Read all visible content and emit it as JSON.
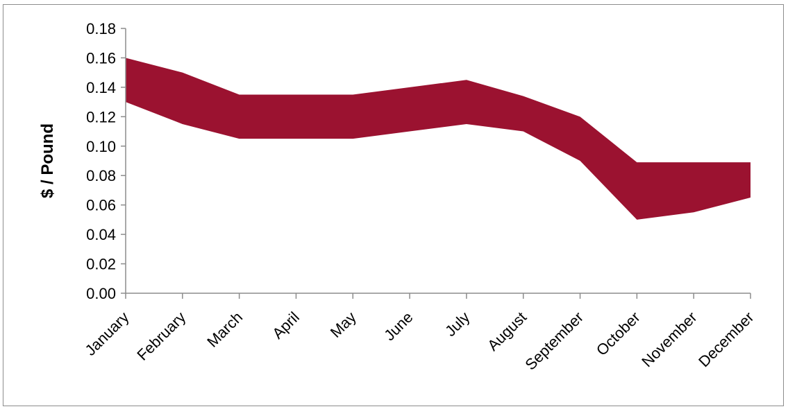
{
  "chart_data": {
    "type": "area",
    "title": "",
    "xlabel": "",
    "ylabel": "$ / Pound",
    "categories": [
      "January",
      "February",
      "March",
      "April",
      "May",
      "June",
      "July",
      "August",
      "September",
      "October",
      "November",
      "December"
    ],
    "series": [
      {
        "low": [
          0.13,
          0.115,
          0.105,
          0.105,
          0.105,
          0.11,
          0.115,
          0.11,
          0.09,
          0.05,
          0.055,
          0.065
        ],
        "high": [
          0.16,
          0.15,
          0.135,
          0.135,
          0.135,
          0.14,
          0.145,
          0.134,
          0.12,
          0.089,
          0.089,
          0.089
        ]
      }
    ],
    "ylim": [
      0,
      0.18
    ],
    "yticks": [
      "0.00",
      "0.02",
      "0.04",
      "0.06",
      "0.08",
      "0.10",
      "0.12",
      "0.14",
      "0.16",
      "0.18"
    ],
    "grid": false,
    "legend": "none",
    "colors": {
      "band": "#9b1230",
      "axis": "#8c8c8c"
    }
  }
}
